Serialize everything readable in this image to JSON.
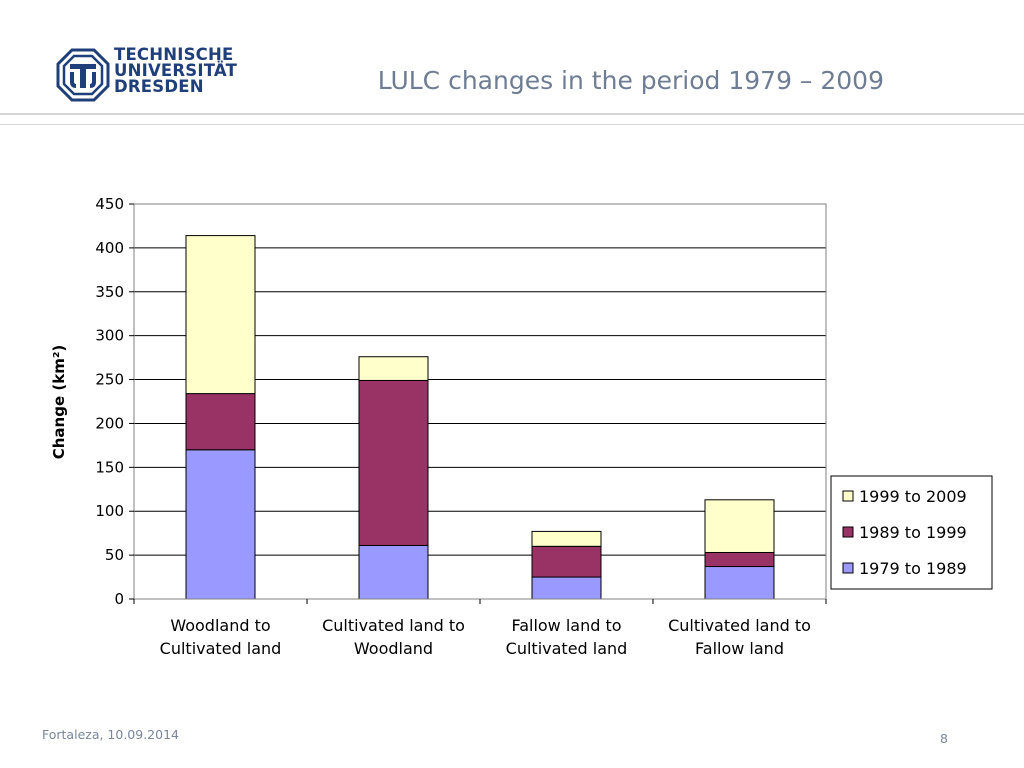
{
  "header": {
    "logo_lines": [
      "TECHNISCHE",
      "UNIVERSITÄT",
      "DRESDEN"
    ],
    "title": "LULC changes in the period 1979 – 2009"
  },
  "footer": {
    "place_date": "Fortaleza, 10.09.2014",
    "page_number": "8"
  },
  "chart_data": {
    "type": "bar",
    "stacked": true,
    "categories": [
      [
        "Woodland to",
        "Cultivated land"
      ],
      [
        "Cultivated land to",
        "Woodland"
      ],
      [
        "Fallow land to",
        "Cultivated land"
      ],
      [
        "Cultivated land to",
        "Fallow land"
      ]
    ],
    "series": [
      {
        "name": "1979 to 1989",
        "color": "#9999ff",
        "values": [
          170,
          61,
          25,
          37
        ]
      },
      {
        "name": "1989 to 1999",
        "color": "#993366",
        "values": [
          64,
          188,
          35,
          16
        ]
      },
      {
        "name": "1999 to 2009",
        "color": "#ffffcc",
        "values": [
          180,
          27,
          17,
          60
        ]
      }
    ],
    "ylabel": "Change (km²)",
    "xlabel": "",
    "ylim": [
      0,
      450
    ],
    "yticks": [
      0,
      50,
      100,
      150,
      200,
      250,
      300,
      350,
      400,
      450
    ],
    "grid": true,
    "legend": "right"
  }
}
